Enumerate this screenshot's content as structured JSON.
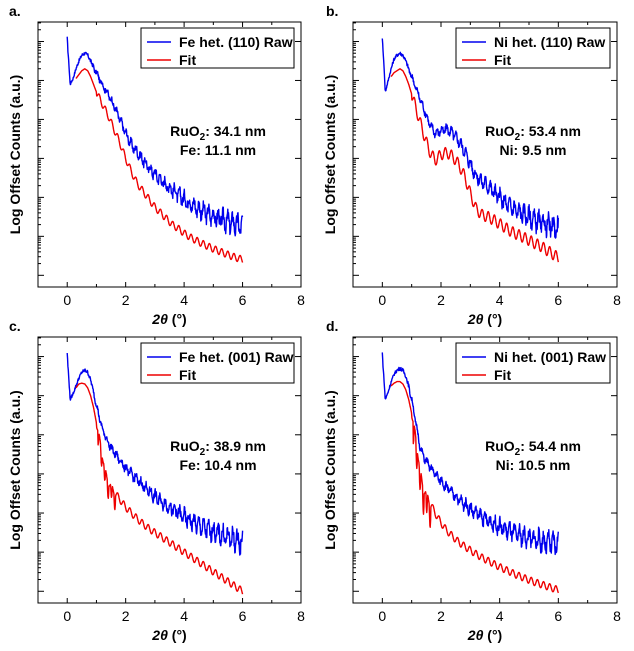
{
  "chart_data": [
    {
      "type": "line",
      "panel": "a.",
      "xlabel_symbol": "2θ",
      "xlabel_unit": "(°)",
      "ylabel": "Log Offset Counts (a.u.)",
      "xlim": [
        -1,
        8
      ],
      "xticks": [
        "0",
        "2",
        "4",
        "6",
        "8"
      ],
      "legend_position": "top-right",
      "series": [
        {
          "name": "Fe het. (110) Raw",
          "color": "#0000ee",
          "x": [
            0,
            0.02,
            0.05,
            0.1,
            0.2,
            0.3,
            0.4,
            0.5,
            0.6,
            0.7,
            0.8,
            0.9,
            1.0,
            1.2,
            1.4,
            1.6,
            1.8,
            2.0,
            2.2,
            2.4,
            2.6,
            2.8,
            3.0,
            3.2,
            3.4,
            3.6,
            3.8,
            4.0,
            4.2,
            4.4,
            4.6,
            4.8,
            5.0,
            5.2,
            5.4,
            5.6,
            5.8,
            6.0
          ],
          "y": [
            7.4,
            7.1,
            6.8,
            6.2,
            6.35,
            6.6,
            6.8,
            6.95,
            7.0,
            6.95,
            6.8,
            6.65,
            6.5,
            6.2,
            5.95,
            5.65,
            5.3,
            4.95,
            4.65,
            4.45,
            4.25,
            4.05,
            3.9,
            3.75,
            3.6,
            3.5,
            3.38,
            3.25,
            3.15,
            3.05,
            2.95,
            2.88,
            2.82,
            2.75,
            2.7,
            2.65,
            2.6,
            2.55
          ]
        },
        {
          "name": "Fit",
          "color": "#ee0000",
          "x": [
            0.3,
            0.4,
            0.5,
            0.6,
            0.7,
            0.8,
            0.9,
            1.0,
            1.2,
            1.4,
            1.6,
            1.8,
            2.0,
            2.2,
            2.4,
            2.6,
            2.8,
            3.0,
            3.2,
            3.4,
            3.6,
            3.8,
            4.0,
            4.2,
            4.4,
            4.6,
            4.8,
            5.0,
            5.2,
            5.4,
            5.6,
            5.8,
            6.0
          ],
          "y": [
            6.35,
            6.45,
            6.55,
            6.6,
            6.55,
            6.4,
            6.2,
            6.0,
            5.7,
            5.4,
            5.05,
            4.7,
            4.3,
            3.95,
            3.65,
            3.45,
            3.25,
            3.05,
            2.9,
            2.75,
            2.6,
            2.5,
            2.38,
            2.28,
            2.2,
            2.12,
            2.05,
            1.98,
            1.92,
            1.86,
            1.8,
            1.75,
            1.7
          ]
        }
      ],
      "annotation": {
        "line1_prefix": "RuO",
        "line1_sub": "2",
        "line1_suffix": ": 34.1 nm",
        "line2": "Fe: 11.1 nm"
      }
    },
    {
      "type": "line",
      "panel": "b.",
      "xlabel_symbol": "2θ",
      "xlabel_unit": "(°)",
      "ylabel": "Log Offset Counts (a.u.)",
      "xlim": [
        -1,
        8
      ],
      "xticks": [
        "0",
        "2",
        "4",
        "6",
        "8"
      ],
      "legend_position": "top-right",
      "series": [
        {
          "name": "Ni het. (110) Raw",
          "color": "#0000ee",
          "x": [
            0,
            0.02,
            0.05,
            0.1,
            0.2,
            0.3,
            0.4,
            0.5,
            0.6,
            0.7,
            0.8,
            0.9,
            1.0,
            1.2,
            1.4,
            1.6,
            1.8,
            2.0,
            2.2,
            2.4,
            2.6,
            2.8,
            3.0,
            3.2,
            3.4,
            3.6,
            3.8,
            4.0,
            4.2,
            4.4,
            4.6,
            4.8,
            5.0,
            5.2,
            5.4,
            5.6,
            5.8,
            6.0
          ],
          "y": [
            7.4,
            7.1,
            6.8,
            6.0,
            6.3,
            6.6,
            6.85,
            6.95,
            7.0,
            6.95,
            6.8,
            6.6,
            6.4,
            6.0,
            5.6,
            5.2,
            4.95,
            5.0,
            5.05,
            4.95,
            4.75,
            4.5,
            4.15,
            3.85,
            3.7,
            3.6,
            3.45,
            3.3,
            3.15,
            3.05,
            2.95,
            2.88,
            2.8,
            2.72,
            2.65,
            2.6,
            2.55,
            2.5
          ]
        },
        {
          "name": "Fit",
          "color": "#ee0000",
          "x": [
            0.3,
            0.4,
            0.5,
            0.6,
            0.7,
            0.8,
            0.9,
            1.0,
            1.2,
            1.4,
            1.6,
            1.8,
            2.0,
            2.2,
            2.4,
            2.6,
            2.8,
            3.0,
            3.2,
            3.4,
            3.6,
            3.8,
            4.0,
            4.2,
            4.4,
            4.6,
            4.8,
            5.0,
            5.2,
            5.4,
            5.6,
            5.8,
            6.0
          ],
          "y": [
            6.4,
            6.5,
            6.55,
            6.6,
            6.55,
            6.4,
            6.2,
            5.95,
            5.45,
            4.95,
            4.5,
            4.25,
            4.4,
            4.45,
            4.35,
            4.15,
            3.85,
            3.4,
            3.0,
            2.85,
            2.8,
            2.72,
            2.62,
            2.52,
            2.42,
            2.35,
            2.28,
            2.2,
            2.12,
            2.05,
            1.95,
            1.85,
            1.75
          ]
        }
      ],
      "annotation": {
        "line1_prefix": "RuO",
        "line1_sub": "2",
        "line1_suffix": ": 53.4 nm",
        "line2": "Ni: 9.5 nm"
      }
    },
    {
      "type": "line",
      "panel": "c.",
      "xlabel_symbol": "2θ",
      "xlabel_unit": "(°)",
      "ylabel": "Log Offset Counts (a.u.)",
      "xlim": [
        -1,
        8
      ],
      "xticks": [
        "0",
        "2",
        "4",
        "6",
        "8"
      ],
      "legend_position": "top-right",
      "series": [
        {
          "name": "Fe het. (001) Raw",
          "color": "#0000ee",
          "x": [
            0,
            0.02,
            0.05,
            0.1,
            0.2,
            0.3,
            0.4,
            0.5,
            0.6,
            0.7,
            0.8,
            0.9,
            1.0,
            1.2,
            1.4,
            1.6,
            1.8,
            2.0,
            2.2,
            2.4,
            2.6,
            2.8,
            3.0,
            3.2,
            3.4,
            3.6,
            3.8,
            4.0,
            4.2,
            4.4,
            4.6,
            4.8,
            5.0,
            5.2,
            5.4,
            5.6,
            5.8,
            6.0
          ],
          "y": [
            7.4,
            7.1,
            6.8,
            6.2,
            6.35,
            6.55,
            6.75,
            6.9,
            6.95,
            6.9,
            6.7,
            6.4,
            6.05,
            5.45,
            5.1,
            4.85,
            4.65,
            4.45,
            4.3,
            4.15,
            4.0,
            3.85,
            3.72,
            3.6,
            3.5,
            3.4,
            3.3,
            3.2,
            3.1,
            3.02,
            2.95,
            2.88,
            2.82,
            2.76,
            2.7,
            2.65,
            2.6,
            2.55
          ]
        },
        {
          "name": "Fit",
          "color": "#ee0000",
          "x": [
            0.3,
            0.4,
            0.5,
            0.6,
            0.7,
            0.8,
            0.9,
            1.0,
            1.1,
            1.2,
            1.3,
            1.4,
            1.6,
            1.8,
            2.0,
            2.2,
            2.4,
            2.6,
            2.8,
            3.0,
            3.2,
            3.4,
            3.6,
            3.8,
            4.0,
            4.2,
            4.4,
            4.6,
            4.8,
            5.0,
            5.2,
            5.4,
            5.6,
            5.8,
            6.0
          ],
          "y": [
            6.5,
            6.6,
            6.62,
            6.6,
            6.5,
            6.3,
            6.0,
            5.6,
            5.2,
            4.8,
            4.35,
            4.1,
            3.85,
            3.65,
            3.45,
            3.3,
            3.15,
            3.02,
            2.9,
            2.8,
            2.7,
            2.6,
            2.5,
            2.4,
            2.3,
            2.2,
            2.1,
            2.0,
            1.9,
            1.8,
            1.7,
            1.6,
            1.5,
            1.4,
            1.3
          ]
        }
      ],
      "annotation": {
        "line1_prefix": "RuO",
        "line1_sub": "2",
        "line1_suffix": ": 38.9 nm",
        "line2": "Fe: 10.4 nm"
      }
    },
    {
      "type": "line",
      "panel": "d.",
      "xlabel_symbol": "2θ",
      "xlabel_unit": "(°)",
      "ylabel": "Log Offset Counts (a.u.)",
      "xlim": [
        -1,
        8
      ],
      "xticks": [
        "0",
        "2",
        "4",
        "6",
        "8"
      ],
      "legend_position": "top-right",
      "series": [
        {
          "name": "Ni het. (001) Raw",
          "color": "#0000ee",
          "x": [
            0,
            0.02,
            0.05,
            0.1,
            0.2,
            0.3,
            0.4,
            0.5,
            0.6,
            0.7,
            0.8,
            0.9,
            1.0,
            1.1,
            1.2,
            1.3,
            1.4,
            1.6,
            1.8,
            2.0,
            2.2,
            2.4,
            2.6,
            2.8,
            3.0,
            3.2,
            3.4,
            3.6,
            3.8,
            4.0,
            4.2,
            4.4,
            4.6,
            4.8,
            5.0,
            5.2,
            5.4,
            5.6,
            5.8,
            6.0
          ],
          "y": [
            7.4,
            7.1,
            6.8,
            6.2,
            6.4,
            6.65,
            6.85,
            6.95,
            7.0,
            6.95,
            6.8,
            6.55,
            6.2,
            5.8,
            5.35,
            4.95,
            4.75,
            4.5,
            4.3,
            4.12,
            3.95,
            3.8,
            3.65,
            3.52,
            3.4,
            3.3,
            3.2,
            3.1,
            3.02,
            2.95,
            2.88,
            2.82,
            2.76,
            2.7,
            2.66,
            2.62,
            2.58,
            2.55,
            2.52,
            2.5
          ]
        },
        {
          "name": "Fit",
          "color": "#ee0000",
          "x": [
            0.3,
            0.4,
            0.5,
            0.6,
            0.7,
            0.8,
            0.9,
            1.0,
            1.1,
            1.2,
            1.3,
            1.4,
            1.5,
            1.6,
            1.8,
            2.0,
            2.2,
            2.4,
            2.6,
            2.8,
            3.0,
            3.2,
            3.4,
            3.6,
            3.8,
            4.0,
            4.2,
            4.4,
            4.6,
            4.8,
            5.0,
            5.2,
            5.4,
            5.6,
            5.8,
            6.0
          ],
          "y": [
            6.55,
            6.62,
            6.66,
            6.66,
            6.6,
            6.45,
            6.2,
            5.85,
            5.4,
            4.9,
            4.3,
            3.9,
            3.8,
            3.6,
            3.3,
            3.05,
            2.85,
            2.7,
            2.56,
            2.45,
            2.35,
            2.25,
            2.16,
            2.08,
            2.0,
            1.92,
            1.85,
            1.78,
            1.71,
            1.65,
            1.59,
            1.53,
            1.48,
            1.43,
            1.38,
            1.33
          ]
        }
      ],
      "annotation": {
        "line1_prefix": "RuO",
        "line1_sub": "2",
        "line1_suffix": ": 54.4 nm",
        "line2": "Ni: 10.5 nm"
      }
    }
  ]
}
